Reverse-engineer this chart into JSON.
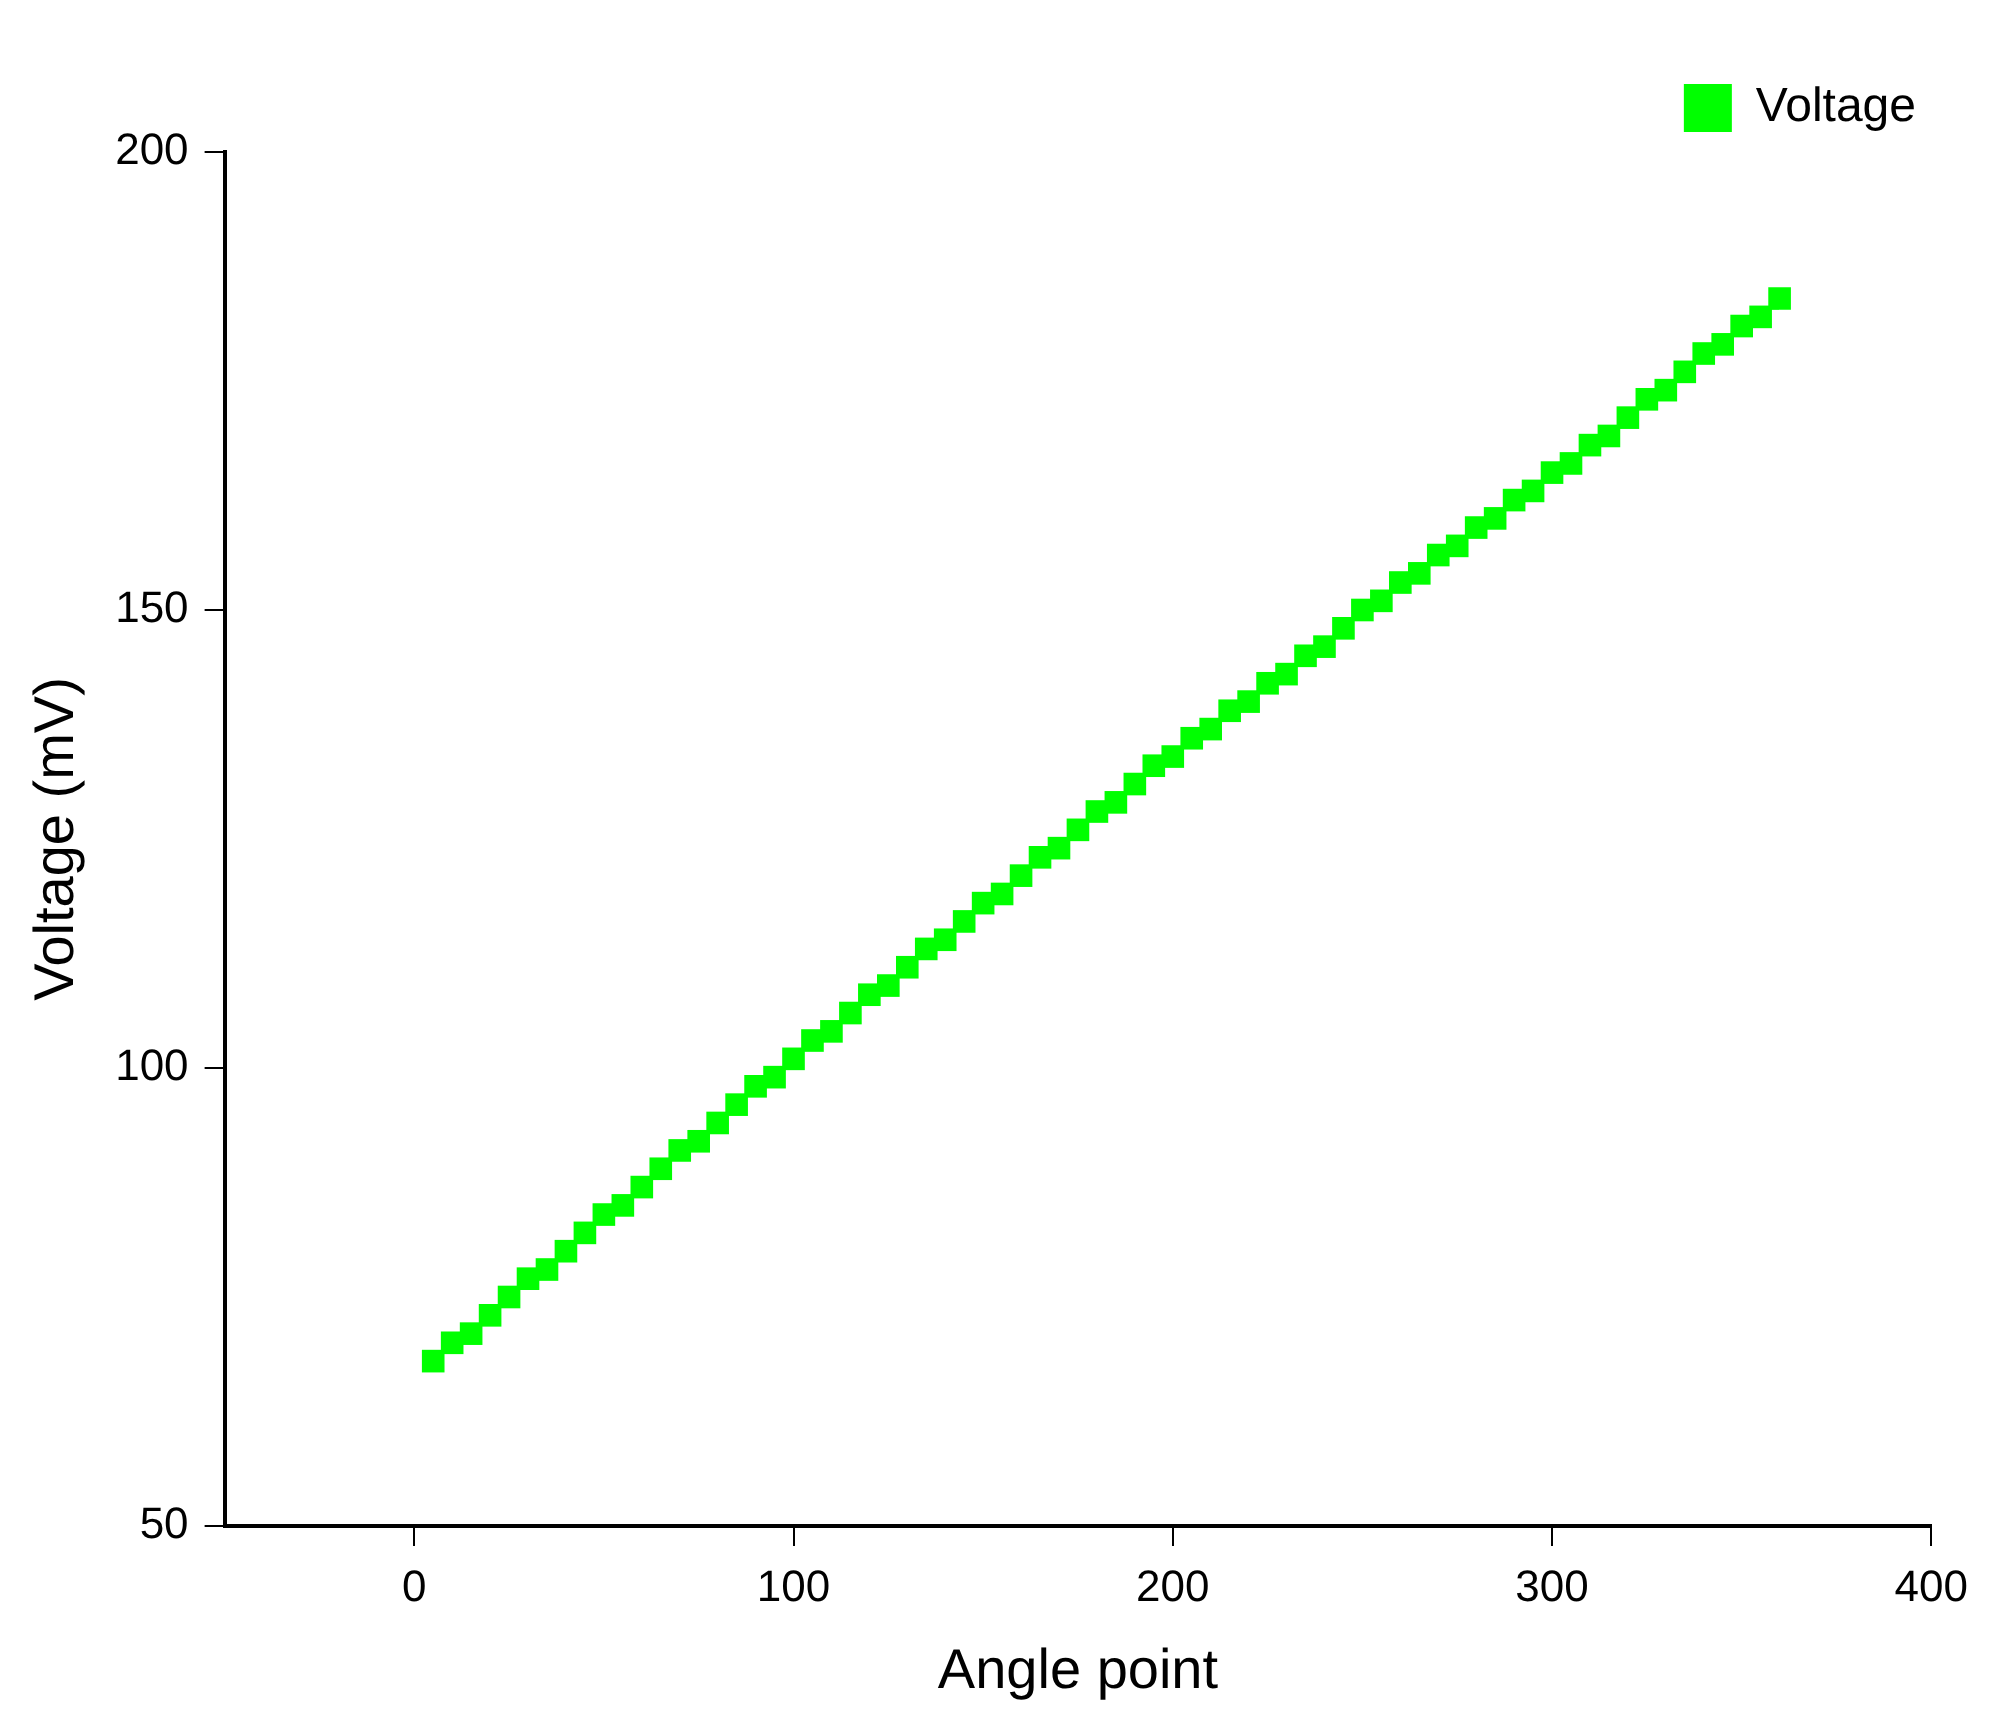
{
  "chart_data": {
    "type": "scatter",
    "xlabel": "Angle point",
    "ylabel": "Voltage (mV)",
    "x": [
      5,
      10,
      15,
      20,
      25,
      30,
      35,
      40,
      45,
      50,
      55,
      60,
      65,
      70,
      75,
      80,
      85,
      90,
      95,
      100,
      105,
      110,
      115,
      120,
      125,
      130,
      135,
      140,
      145,
      150,
      155,
      160,
      165,
      170,
      175,
      180,
      185,
      190,
      195,
      200,
      205,
      210,
      215,
      220,
      225,
      230,
      235,
      240,
      245,
      250,
      255,
      260,
      265,
      270,
      275,
      280,
      285,
      290,
      295,
      300,
      305,
      310,
      315,
      320,
      325,
      330,
      335,
      340,
      345,
      350,
      355,
      360
    ],
    "series": [
      {
        "name": "Voltage",
        "color": "#00ff00",
        "values": [
          68,
          70,
          71,
          73,
          75,
          77,
          78,
          80,
          82,
          84,
          85,
          87,
          89,
          91,
          92,
          94,
          96,
          98,
          99,
          101,
          103,
          104,
          106,
          108,
          109,
          111,
          113,
          114,
          116,
          118,
          119,
          121,
          123,
          124,
          126,
          128,
          129,
          131,
          133,
          134,
          136,
          137,
          139,
          140,
          142,
          143,
          145,
          146,
          148,
          150,
          151,
          153,
          154,
          156,
          157,
          159,
          160,
          162,
          163,
          165,
          166,
          168,
          169,
          171,
          173,
          174,
          176,
          178,
          179,
          181,
          182,
          184
        ]
      }
    ],
    "xlim": [
      -50,
      400
    ],
    "xticks": [
      0,
      100,
      200,
      300,
      400
    ],
    "ylim": [
      50,
      200
    ],
    "yticks": [
      50,
      100,
      150,
      200
    ],
    "grid": false,
    "legend": "top right",
    "marker": "square"
  }
}
